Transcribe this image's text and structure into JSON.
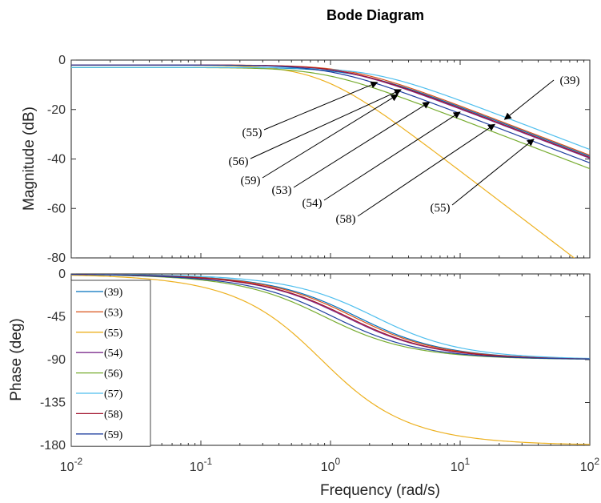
{
  "chart_data": {
    "type": "line",
    "title": "Bode Diagram",
    "xlabel": "Frequency  (rad/s)",
    "xscale": "log",
    "xlim": [
      0.01,
      100
    ],
    "x_ticks": [
      {
        "base": "10",
        "exp": "-2",
        "value": 0.01
      },
      {
        "base": "10",
        "exp": "-1",
        "value": 0.1
      },
      {
        "base": "10",
        "exp": "0",
        "value": 1
      },
      {
        "base": "10",
        "exp": "1",
        "value": 10
      },
      {
        "base": "10",
        "exp": "2",
        "value": 100
      }
    ],
    "magnitude": {
      "ylabel": "Magnitude (dB)",
      "ylim": [
        -80,
        0
      ],
      "yticks": [
        "0",
        "-20",
        "-40",
        "-60",
        "-80"
      ],
      "series": [
        {
          "name": "(39)",
          "color": "#0072BD",
          "dc_gain_db": -3,
          "break_rad_s": 1.6,
          "order": 1
        },
        {
          "name": "(53)",
          "color": "#D95319",
          "dc_gain_db": -2,
          "break_rad_s": 1.5,
          "order": 1
        },
        {
          "name": "(55)",
          "color": "#EDB120",
          "dc_gain_db": -2,
          "break_rad_s": 0.85,
          "order": 2
        },
        {
          "name": "(54)",
          "color": "#7E2F8E",
          "dc_gain_db": -2,
          "break_rad_s": 1.3,
          "order": 1
        },
        {
          "name": "(56)",
          "color": "#77AC30",
          "dc_gain_db": -3,
          "break_rad_s": 0.9,
          "order": 1
        },
        {
          "name": "(57)",
          "color": "#4DBEEE",
          "dc_gain_db": -3,
          "break_rad_s": 2.2,
          "order": 1
        },
        {
          "name": "(58)",
          "color": "#A2142F",
          "dc_gain_db": -2,
          "break_rad_s": 1.35,
          "order": 1
        },
        {
          "name": "(59)",
          "color": "#1F3F9F",
          "dc_gain_db": -2,
          "break_rad_s": 1.05,
          "order": 1
        }
      ]
    },
    "phase": {
      "ylabel": "Phase (deg)",
      "ylim": [
        -180,
        0
      ],
      "yticks": [
        "0",
        "-45",
        "-90",
        "-135",
        "-180"
      ],
      "legend_location": "left",
      "legend_entries": [
        "(39)",
        "(53)",
        "(55)",
        "(54)",
        "(56)",
        "(57)",
        "(58)",
        "(59)"
      ]
    },
    "annotations": [
      {
        "label": "(39)",
        "arrow_to_rad_s": 22,
        "arrow_to_db": -24
      },
      {
        "label": "(55)",
        "arrow_to_rad_s": 2.3,
        "arrow_to_db": -9
      },
      {
        "label": "(56)",
        "arrow_to_rad_s": 3.5,
        "arrow_to_db": -12
      },
      {
        "label": "(59)",
        "arrow_to_rad_s": 3.3,
        "arrow_to_db": -14
      },
      {
        "label": "(53)",
        "arrow_to_rad_s": 5.8,
        "arrow_to_db": -17
      },
      {
        "label": "(54)",
        "arrow_to_rad_s": 10,
        "arrow_to_db": -21
      },
      {
        "label": "(58)",
        "arrow_to_rad_s": 18.5,
        "arrow_to_db": -26
      },
      {
        "label": "(55)",
        "arrow_to_rad_s": 37,
        "arrow_to_db": -32
      }
    ]
  }
}
